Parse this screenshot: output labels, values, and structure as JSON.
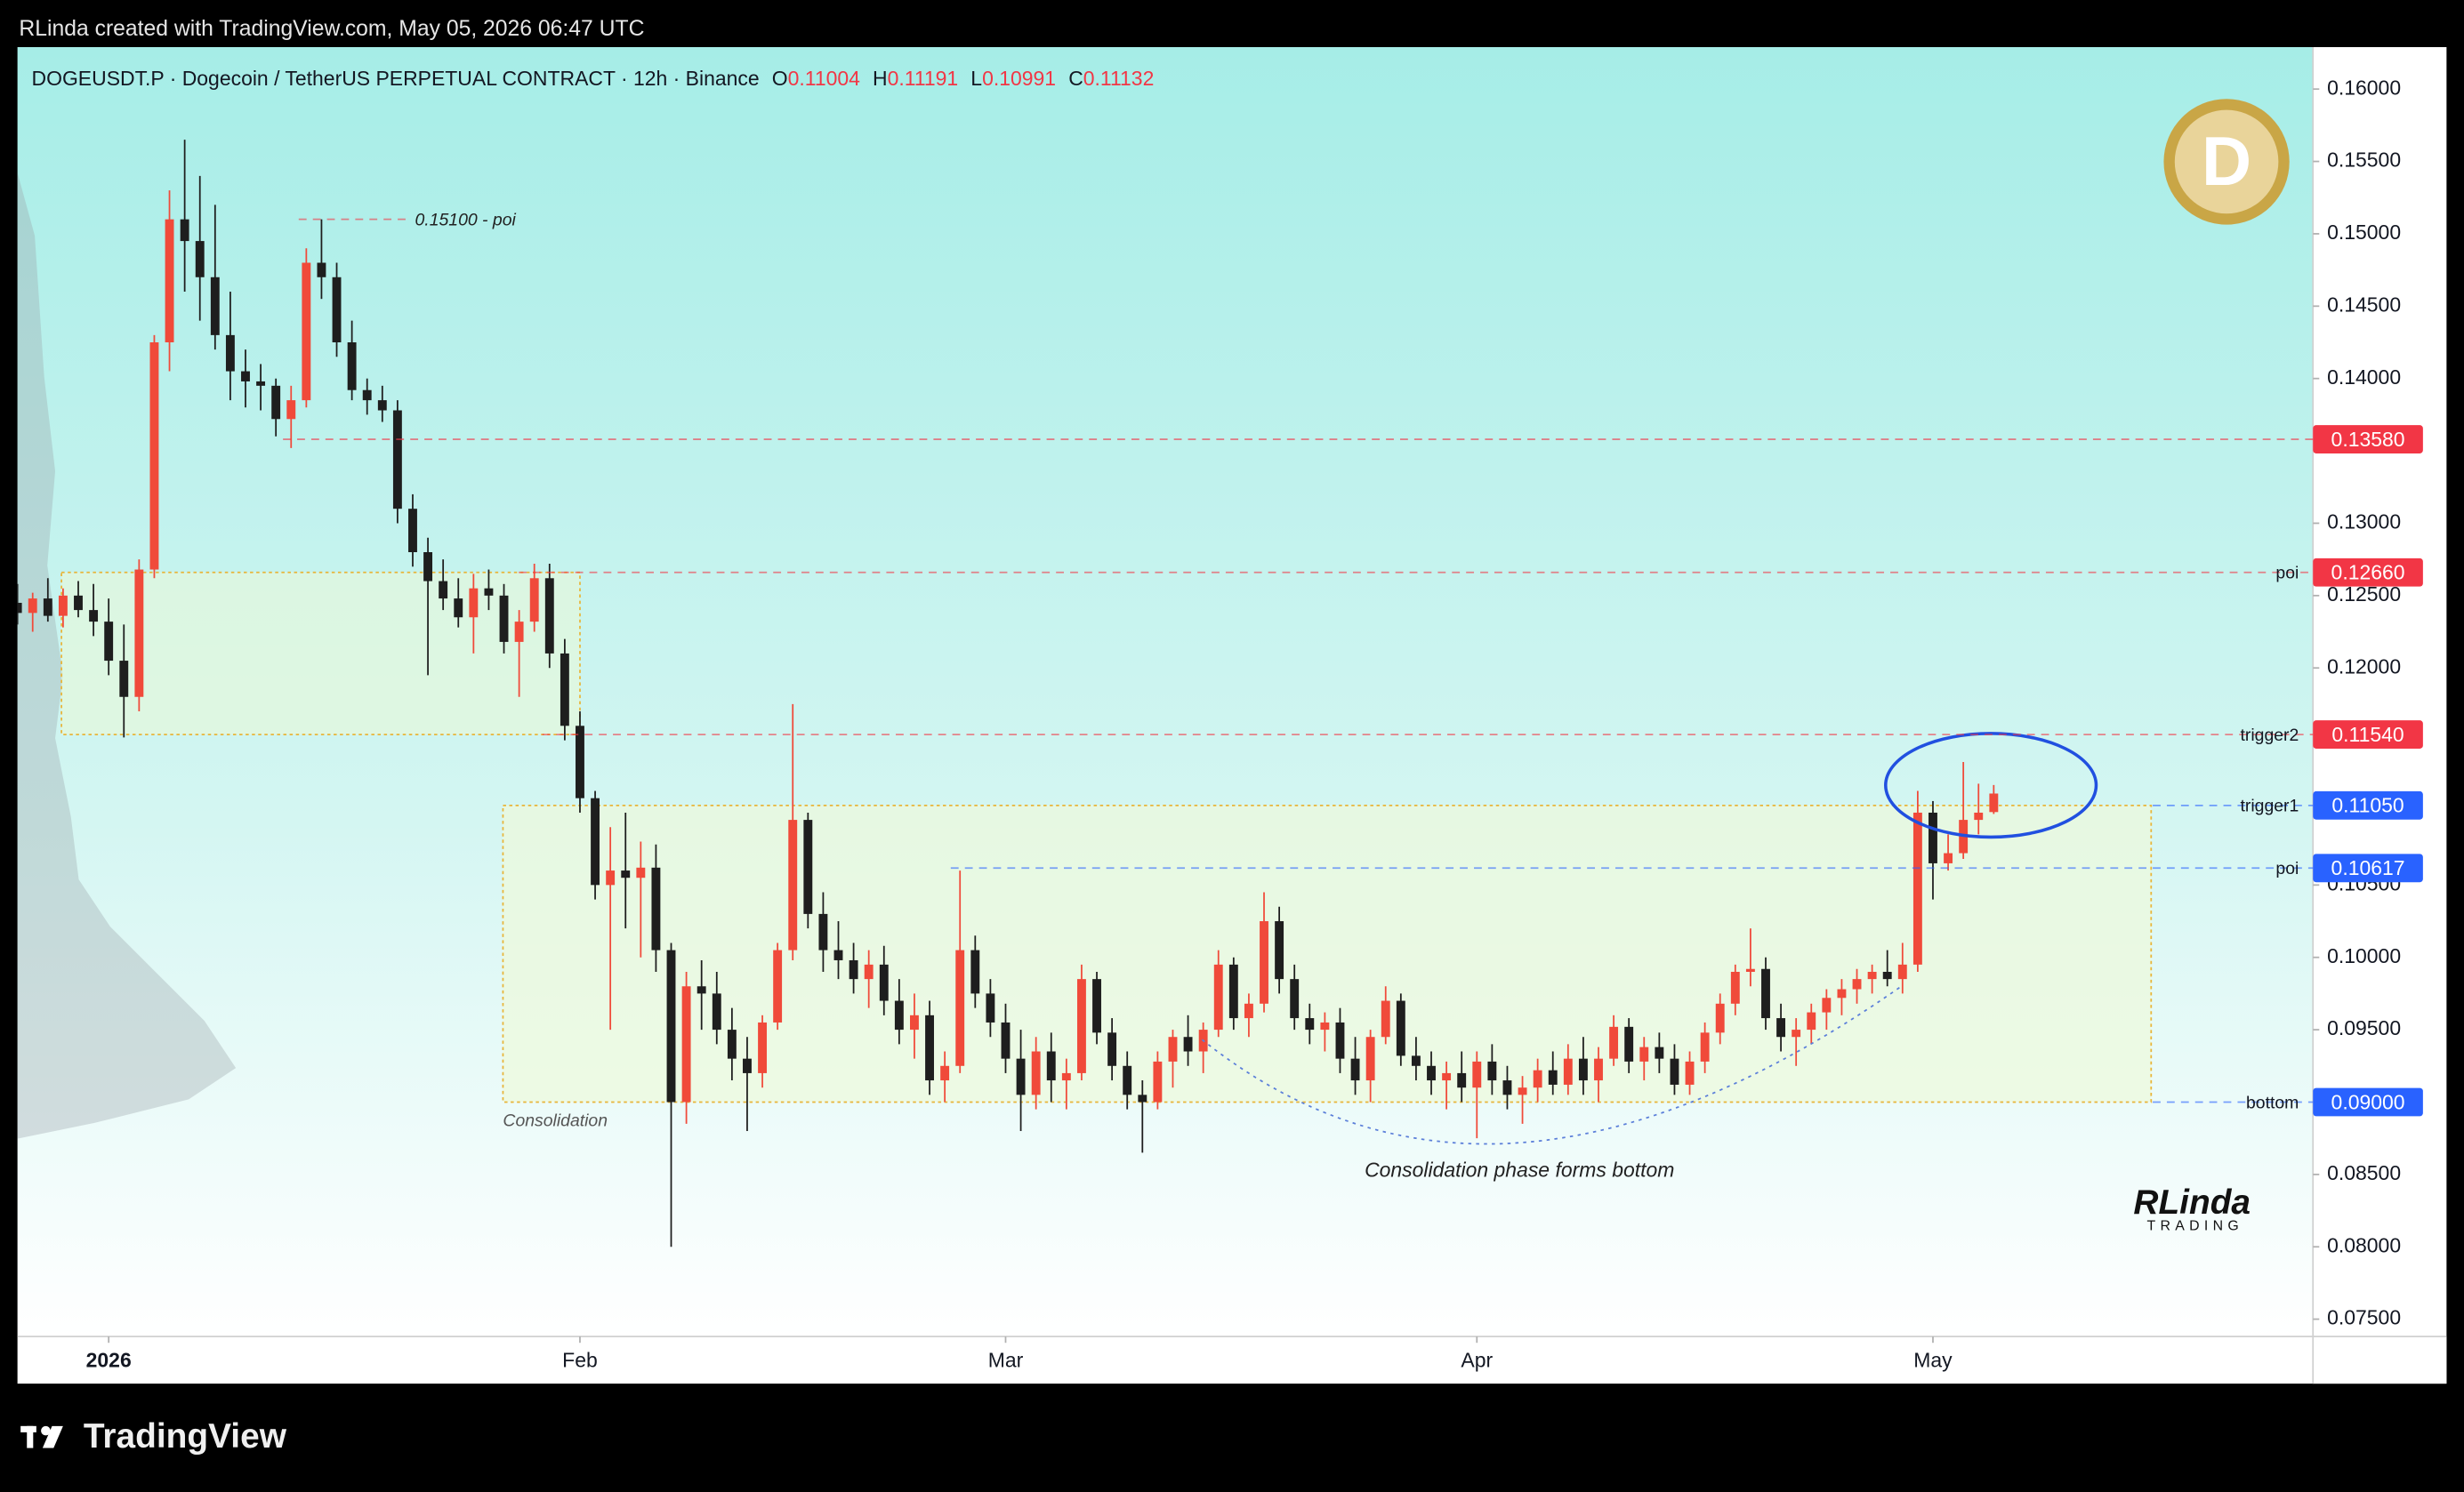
{
  "attribution": "RLinda created with TradingView.com, May 05, 2026 06:47 UTC",
  "brand": "TradingView",
  "logo_text": "RLinda",
  "logo_subtext": "TRADING",
  "chart_data": {
    "type": "candlestick",
    "header": "DOGEUSDT.P · Dogecoin / TetherUS PERPETUAL CONTRACT · 12h · Binance",
    "ohlc_labels": [
      "O",
      "H",
      "L",
      "C"
    ],
    "up_color": "#f04a3a",
    "down_color": "#1e1e1e",
    "xlim": [
      0,
      151
    ],
    "xticks": [
      {
        "value": 6,
        "label": "2026"
      },
      {
        "value": 37,
        "label": "Feb"
      },
      {
        "value": 65,
        "label": "Mar"
      },
      {
        "value": 96,
        "label": "Apr"
      },
      {
        "value": 126,
        "label": "May"
      }
    ],
    "ylim": [
      0.0738,
      0.1629
    ],
    "yticks": [
      {
        "value": 0.16,
        "label": "0.16000"
      },
      {
        "value": 0.155,
        "label": "0.15500"
      },
      {
        "value": 0.15,
        "label": "0.15000"
      },
      {
        "value": 0.145,
        "label": "0.14500"
      },
      {
        "value": 0.14,
        "label": "0.14000"
      },
      {
        "value": 0.13,
        "label": "0.13000"
      },
      {
        "value": 0.125,
        "label": "0.12500"
      },
      {
        "value": 0.12,
        "label": "0.12000"
      },
      {
        "value": 0.105,
        "label": "0.10500"
      },
      {
        "value": 0.1,
        "label": "0.10000"
      },
      {
        "value": 0.095,
        "label": "0.09500"
      },
      {
        "value": 0.085,
        "label": "0.08500"
      },
      {
        "value": 0.08,
        "label": "0.08000"
      },
      {
        "value": 0.075,
        "label": "0.07500"
      }
    ],
    "levels": [
      {
        "value": 0.1358,
        "label": "0.13580",
        "color": "#f23645"
      },
      {
        "value": 0.1266,
        "label": "0.12660",
        "name": "poi",
        "color": "#f23645"
      },
      {
        "value": 0.1154,
        "label": "0.11540",
        "name": "trigger2",
        "color": "#f23645"
      },
      {
        "value": 0.1105,
        "label": "0.11050",
        "name": "trigger1",
        "color": "#2962ff"
      },
      {
        "value": 0.10617,
        "label": "0.10617",
        "name": "poi",
        "color": "#2962ff"
      },
      {
        "value": 0.09,
        "label": "0.09000",
        "name": "bottom",
        "color": "#2962ff"
      }
    ],
    "annotation": {
      "value": 0.151,
      "text": "0.15100 - poi"
    },
    "zone_labels": [
      "Consolidation",
      "Consolidation phase forms bottom"
    ],
    "ohlc": [
      [
        0.1245,
        0.1258,
        0.123,
        0.1238
      ],
      [
        0.1238,
        0.1252,
        0.1225,
        0.1248
      ],
      [
        0.1248,
        0.1262,
        0.1232,
        0.1236
      ],
      [
        0.1236,
        0.1255,
        0.1228,
        0.125
      ],
      [
        0.125,
        0.126,
        0.1235,
        0.124
      ],
      [
        0.124,
        0.1258,
        0.1222,
        0.1232
      ],
      [
        0.1232,
        0.1248,
        0.1195,
        0.1205
      ],
      [
        0.1205,
        0.123,
        0.1152,
        0.118
      ],
      [
        0.118,
        0.1275,
        0.117,
        0.1268
      ],
      [
        0.1268,
        0.143,
        0.1262,
        0.1425
      ],
      [
        0.1425,
        0.153,
        0.1405,
        0.151
      ],
      [
        0.151,
        0.1565,
        0.146,
        0.1495
      ],
      [
        0.1495,
        0.154,
        0.144,
        0.147
      ],
      [
        0.147,
        0.152,
        0.142,
        0.143
      ],
      [
        0.143,
        0.146,
        0.1385,
        0.1405
      ],
      [
        0.1405,
        0.142,
        0.138,
        0.1398
      ],
      [
        0.1398,
        0.141,
        0.1378,
        0.1395
      ],
      [
        0.1395,
        0.14,
        0.136,
        0.1372
      ],
      [
        0.1372,
        0.1395,
        0.1352,
        0.1385
      ],
      [
        0.1385,
        0.149,
        0.138,
        0.148
      ],
      [
        0.148,
        0.151,
        0.1455,
        0.147
      ],
      [
        0.147,
        0.148,
        0.1415,
        0.1425
      ],
      [
        0.1425,
        0.144,
        0.1385,
        0.1392
      ],
      [
        0.1392,
        0.14,
        0.1375,
        0.1385
      ],
      [
        0.1385,
        0.1395,
        0.137,
        0.1378
      ],
      [
        0.1378,
        0.1385,
        0.13,
        0.131
      ],
      [
        0.131,
        0.132,
        0.127,
        0.128
      ],
      [
        0.128,
        0.129,
        0.1195,
        0.126
      ],
      [
        0.126,
        0.1275,
        0.124,
        0.1248
      ],
      [
        0.1248,
        0.1262,
        0.1228,
        0.1235
      ],
      [
        0.1235,
        0.1265,
        0.121,
        0.1255
      ],
      [
        0.1255,
        0.1268,
        0.124,
        0.125
      ],
      [
        0.125,
        0.1258,
        0.121,
        0.1218
      ],
      [
        0.1218,
        0.124,
        0.118,
        0.1232
      ],
      [
        0.1232,
        0.1272,
        0.1225,
        0.1262
      ],
      [
        0.1262,
        0.1272,
        0.12,
        0.121
      ],
      [
        0.121,
        0.122,
        0.115,
        0.116
      ],
      [
        0.116,
        0.117,
        0.11,
        0.111
      ],
      [
        0.111,
        0.1115,
        0.104,
        0.105
      ],
      [
        0.105,
        0.109,
        0.095,
        0.106
      ],
      [
        0.106,
        0.11,
        0.102,
        0.1055
      ],
      [
        0.1055,
        0.108,
        0.1,
        0.1062
      ],
      [
        0.1062,
        0.1078,
        0.099,
        0.1005
      ],
      [
        0.1005,
        0.101,
        0.08,
        0.09
      ],
      [
        0.09,
        0.099,
        0.0885,
        0.098
      ],
      [
        0.098,
        0.0998,
        0.095,
        0.0975
      ],
      [
        0.0975,
        0.099,
        0.094,
        0.095
      ],
      [
        0.095,
        0.0965,
        0.0915,
        0.093
      ],
      [
        0.093,
        0.0945,
        0.088,
        0.092
      ],
      [
        0.092,
        0.096,
        0.091,
        0.0955
      ],
      [
        0.0955,
        0.101,
        0.095,
        0.1005
      ],
      [
        0.1005,
        0.1175,
        0.0998,
        0.1095
      ],
      [
        0.1095,
        0.11,
        0.102,
        0.103
      ],
      [
        0.103,
        0.1045,
        0.099,
        0.1005
      ],
      [
        0.1005,
        0.1025,
        0.0985,
        0.0998
      ],
      [
        0.0998,
        0.101,
        0.0975,
        0.0985
      ],
      [
        0.0985,
        0.1005,
        0.0965,
        0.0995
      ],
      [
        0.0995,
        0.1008,
        0.096,
        0.097
      ],
      [
        0.097,
        0.0985,
        0.094,
        0.095
      ],
      [
        0.095,
        0.0975,
        0.093,
        0.096
      ],
      [
        0.096,
        0.097,
        0.0905,
        0.0915
      ],
      [
        0.0915,
        0.0935,
        0.09,
        0.0925
      ],
      [
        0.0925,
        0.106,
        0.092,
        0.1005
      ],
      [
        0.1005,
        0.1015,
        0.0965,
        0.0975
      ],
      [
        0.0975,
        0.0985,
        0.0945,
        0.0955
      ],
      [
        0.0955,
        0.0968,
        0.092,
        0.093
      ],
      [
        0.093,
        0.095,
        0.088,
        0.0905
      ],
      [
        0.0905,
        0.0945,
        0.0895,
        0.0935
      ],
      [
        0.0935,
        0.0948,
        0.09,
        0.0915
      ],
      [
        0.0915,
        0.093,
        0.0895,
        0.092
      ],
      [
        0.092,
        0.0995,
        0.0915,
        0.0985
      ],
      [
        0.0985,
        0.099,
        0.094,
        0.0948
      ],
      [
        0.0948,
        0.0958,
        0.0915,
        0.0925
      ],
      [
        0.0925,
        0.0935,
        0.0895,
        0.0905
      ],
      [
        0.0905,
        0.0915,
        0.0865,
        0.09
      ],
      [
        0.09,
        0.0935,
        0.0895,
        0.0928
      ],
      [
        0.0928,
        0.095,
        0.091,
        0.0945
      ],
      [
        0.0945,
        0.096,
        0.0925,
        0.0935
      ],
      [
        0.0935,
        0.0955,
        0.092,
        0.095
      ],
      [
        0.095,
        0.1005,
        0.0945,
        0.0995
      ],
      [
        0.0995,
        0.1,
        0.095,
        0.0958
      ],
      [
        0.0958,
        0.0975,
        0.0945,
        0.0968
      ],
      [
        0.0968,
        0.1045,
        0.0962,
        0.1025
      ],
      [
        0.1025,
        0.1035,
        0.0975,
        0.0985
      ],
      [
        0.0985,
        0.0995,
        0.095,
        0.0958
      ],
      [
        0.0958,
        0.0968,
        0.094,
        0.095
      ],
      [
        0.095,
        0.0962,
        0.0935,
        0.0955
      ],
      [
        0.0955,
        0.0965,
        0.092,
        0.093
      ],
      [
        0.093,
        0.0945,
        0.0905,
        0.0915
      ],
      [
        0.0915,
        0.095,
        0.09,
        0.0945
      ],
      [
        0.0945,
        0.098,
        0.094,
        0.097
      ],
      [
        0.097,
        0.0975,
        0.0925,
        0.0932
      ],
      [
        0.0932,
        0.0945,
        0.0915,
        0.0925
      ],
      [
        0.0925,
        0.0935,
        0.0905,
        0.0915
      ],
      [
        0.0915,
        0.0928,
        0.0895,
        0.092
      ],
      [
        0.092,
        0.0935,
        0.09,
        0.091
      ],
      [
        0.091,
        0.0935,
        0.0875,
        0.0928
      ],
      [
        0.0928,
        0.094,
        0.0905,
        0.0915
      ],
      [
        0.0915,
        0.0925,
        0.0895,
        0.0905
      ],
      [
        0.0905,
        0.0918,
        0.0885,
        0.091
      ],
      [
        0.091,
        0.093,
        0.09,
        0.0922
      ],
      [
        0.0922,
        0.0935,
        0.0905,
        0.0912
      ],
      [
        0.0912,
        0.094,
        0.0905,
        0.093
      ],
      [
        0.093,
        0.0945,
        0.0905,
        0.0915
      ],
      [
        0.0915,
        0.0938,
        0.09,
        0.093
      ],
      [
        0.093,
        0.096,
        0.0925,
        0.0952
      ],
      [
        0.0952,
        0.0958,
        0.092,
        0.0928
      ],
      [
        0.0928,
        0.0945,
        0.0915,
        0.0938
      ],
      [
        0.0938,
        0.0948,
        0.092,
        0.093
      ],
      [
        0.093,
        0.094,
        0.0905,
        0.0912
      ],
      [
        0.0912,
        0.0935,
        0.0905,
        0.0928
      ],
      [
        0.0928,
        0.0955,
        0.092,
        0.0948
      ],
      [
        0.0948,
        0.0975,
        0.094,
        0.0968
      ],
      [
        0.0968,
        0.0995,
        0.096,
        0.099
      ],
      [
        0.099,
        0.102,
        0.098,
        0.0992
      ],
      [
        0.0992,
        0.1,
        0.095,
        0.0958
      ],
      [
        0.0958,
        0.0968,
        0.0935,
        0.0945
      ],
      [
        0.0945,
        0.0958,
        0.0925,
        0.095
      ],
      [
        0.095,
        0.0968,
        0.094,
        0.0962
      ],
      [
        0.0962,
        0.0978,
        0.095,
        0.0972
      ],
      [
        0.0972,
        0.0985,
        0.096,
        0.0978
      ],
      [
        0.0978,
        0.0992,
        0.0968,
        0.0985
      ],
      [
        0.0985,
        0.0995,
        0.0975,
        0.099
      ],
      [
        0.099,
        0.1005,
        0.098,
        0.0985
      ],
      [
        0.0985,
        0.101,
        0.0975,
        0.0995
      ],
      [
        0.0995,
        0.1115,
        0.099,
        0.11
      ],
      [
        0.11,
        0.1108,
        0.104,
        0.1065
      ],
      [
        0.1065,
        0.1085,
        0.106,
        0.1072
      ],
      [
        0.1072,
        0.1135,
        0.1068,
        0.1095
      ],
      [
        0.1095,
        0.112,
        0.1085,
        0.11
      ],
      [
        0.11004,
        0.11191,
        0.10991,
        0.11132
      ]
    ]
  }
}
